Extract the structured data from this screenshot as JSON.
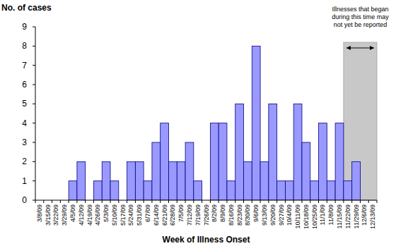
{
  "chart_data": {
    "type": "bar",
    "y_label": "No. of cases",
    "x_label": "Week of Illness Onset",
    "categories": [
      "3/8/09",
      "3/15/09",
      "3/22/09",
      "3/29/09",
      "4/5/09",
      "4/12/09",
      "4/19/09",
      "4/26/09",
      "5/3/09",
      "5/10/09",
      "5/17/09",
      "5/24/09",
      "5/31/09",
      "6/7/09",
      "6/14/09",
      "6/21/09",
      "6/28/09",
      "7/5/09",
      "7/12/09",
      "7/19/09",
      "7/26/09",
      "8/2/09",
      "8/9/09",
      "8/16/09",
      "8/23/09",
      "8/30/09",
      "9/6/09",
      "9/13/09",
      "9/20/09",
      "9/27/09",
      "10/4/09",
      "10/11/09",
      "10/18/09",
      "10/25/09",
      "11/1/09",
      "11/8/09",
      "11/15/09",
      "11/22/09",
      "11/29/09",
      "12/6/09",
      "12/13/09"
    ],
    "values": [
      0,
      0,
      0,
      0,
      1,
      2,
      0,
      1,
      2,
      1,
      0,
      2,
      2,
      1,
      3,
      4,
      2,
      2,
      3,
      1,
      0,
      4,
      4,
      1,
      5,
      2,
      8,
      2,
      5,
      1,
      1,
      5,
      3,
      1,
      4,
      1,
      4,
      1,
      2,
      0,
      0
    ],
    "color": "#9999ff",
    "ylim": [
      0,
      9
    ],
    "yticks": [
      0,
      1,
      2,
      3,
      4,
      5,
      6,
      7,
      8,
      9
    ],
    "grid": false,
    "annotation": {
      "text": "Illnesses that began during this time may not yet be reported",
      "x_range": [
        "11/22/09",
        "12/13/09"
      ]
    }
  }
}
